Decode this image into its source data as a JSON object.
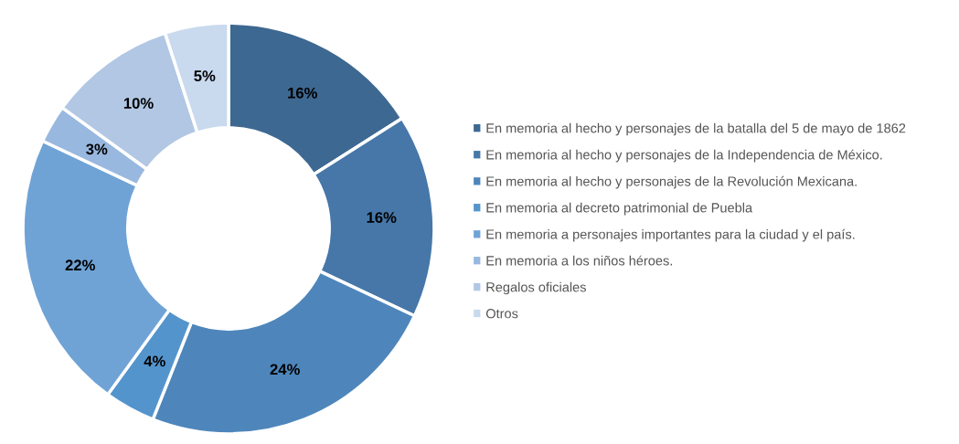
{
  "chart_data": {
    "type": "donut",
    "categories": [
      "En memoria al hecho y personajes de la batalla del 5 de mayo de 1862",
      "En memoria al hecho y personajes de la Independencia de México.",
      "En memoria al hecho y personajes de la Revolución Mexicana.",
      "En memoria al decreto patrimonial de Puebla",
      "En memoria a personajes importantes para la ciudad y el país.",
      "En memoria a los niños héroes.",
      "Regalos oficiales",
      "Otros"
    ],
    "values": [
      16,
      16,
      24,
      4,
      22,
      3,
      10,
      5
    ],
    "value_labels": [
      "16%",
      "16%",
      "24%",
      "4%",
      "22%",
      "3%",
      "10%",
      "5%"
    ],
    "colors": [
      "#3d6891",
      "#4677a8",
      "#4e86bb",
      "#5494cc",
      "#6fa3d6",
      "#98b8df",
      "#b1c7e4",
      "#c9d9ee"
    ],
    "legend": "right"
  }
}
